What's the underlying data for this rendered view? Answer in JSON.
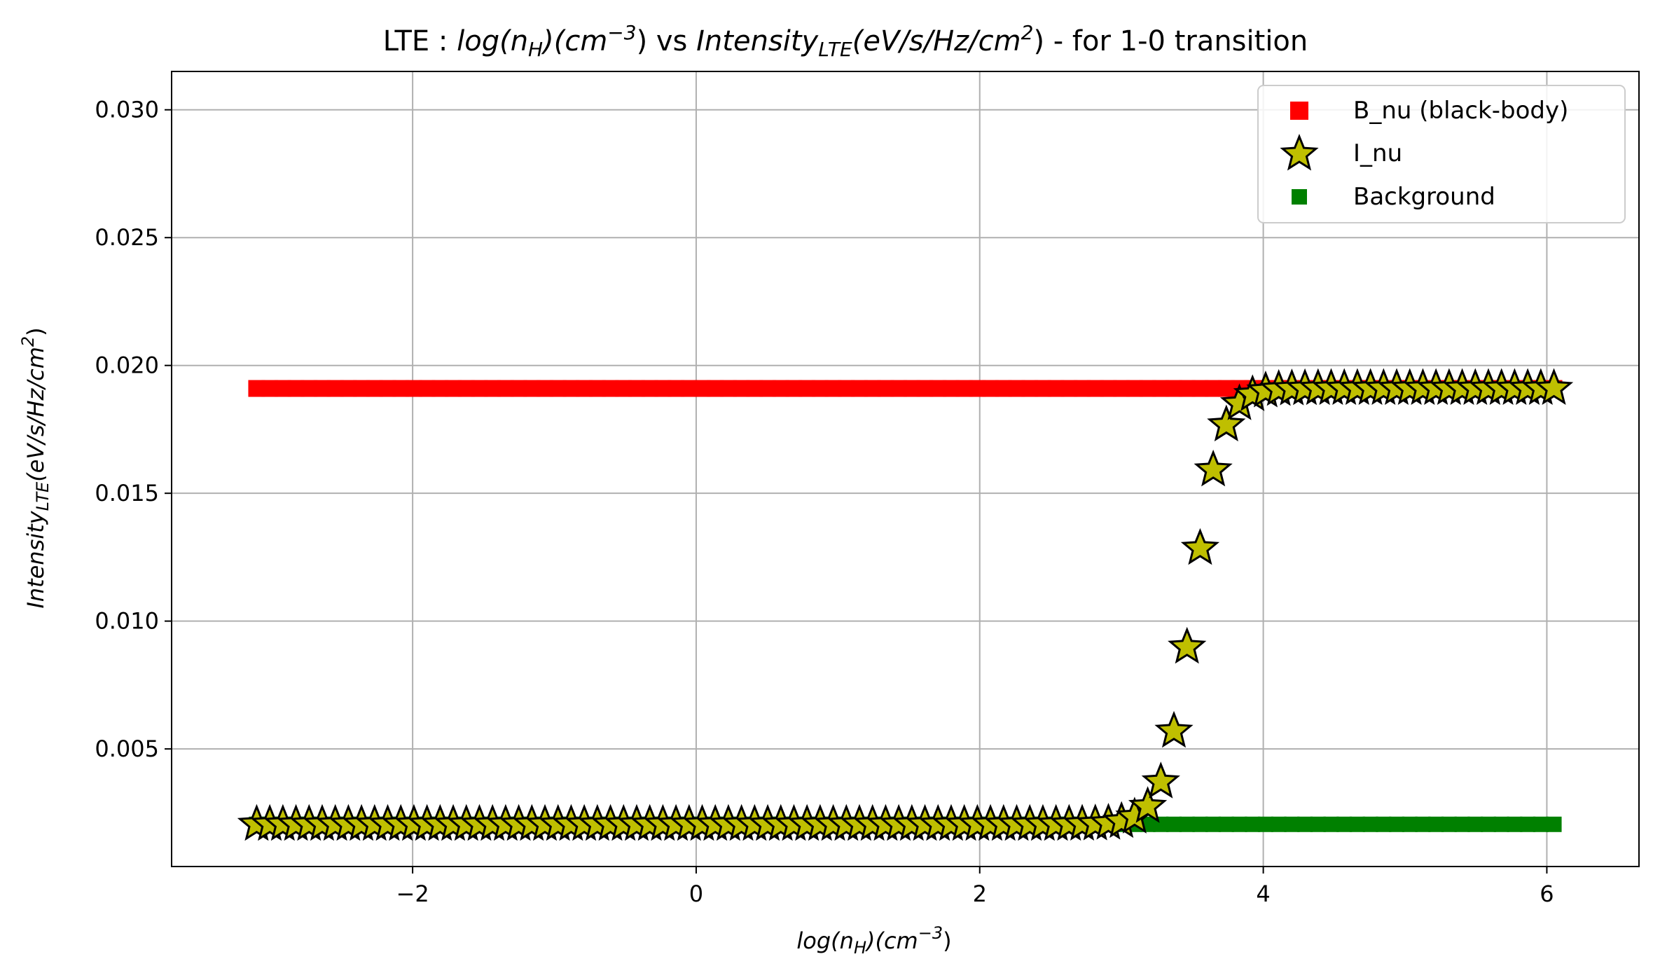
{
  "chart_data": {
    "type": "scatter",
    "title": {
      "prefix": "LTE : ",
      "x_main": "log(n",
      "x_sub": "H",
      "x_mid": ")(cm",
      "x_sup": "−3",
      "x_end": ")",
      "vs": " vs ",
      "y_main": "Intensity",
      "y_sub": "LTE",
      "y_mid": "(eV/s/Hz/cm",
      "y_sup": "2",
      "y_end": ")",
      "suffix": " - for 1-0 transition"
    },
    "xlabel": {
      "main": "log(n",
      "sub": "H",
      "mid": ")(cm",
      "sup": "−3",
      "end": ")"
    },
    "ylabel": {
      "main": "Intensity",
      "sub": "LTE",
      "mid": "(eV/s/Hz/cm",
      "sup": "2",
      "end": ")"
    },
    "xlim": [
      -3.7,
      6.65
    ],
    "ylim": [
      0.0004,
      0.0315
    ],
    "x_ticks": [
      -2,
      0,
      2,
      4,
      6
    ],
    "x_tick_labels": [
      "−2",
      "0",
      "2",
      "4",
      "6"
    ],
    "y_ticks": [
      0.005,
      0.01,
      0.015,
      0.02,
      0.025,
      0.03
    ],
    "y_tick_labels": [
      "0.005",
      "0.010",
      "0.015",
      "0.020",
      "0.025",
      "0.030"
    ],
    "grid": true,
    "legend_position": "top-right",
    "x_range": {
      "start": -3.1,
      "end": 6.05,
      "points": 100
    },
    "series": [
      {
        "name": "B_nu (black-body)",
        "marker": "square",
        "color": "#ff0000",
        "constant_y": 0.0191
      },
      {
        "name": "I_nu",
        "marker": "star",
        "color": "#bfbf00",
        "edge_color": "#000000",
        "low_y": 0.00205,
        "high_y": 0.0191,
        "transition_center": 3.5,
        "transition_width": 0.1
      },
      {
        "name": "Background",
        "marker": "square",
        "color": "#008000",
        "constant_y": 0.00205
      }
    ]
  }
}
